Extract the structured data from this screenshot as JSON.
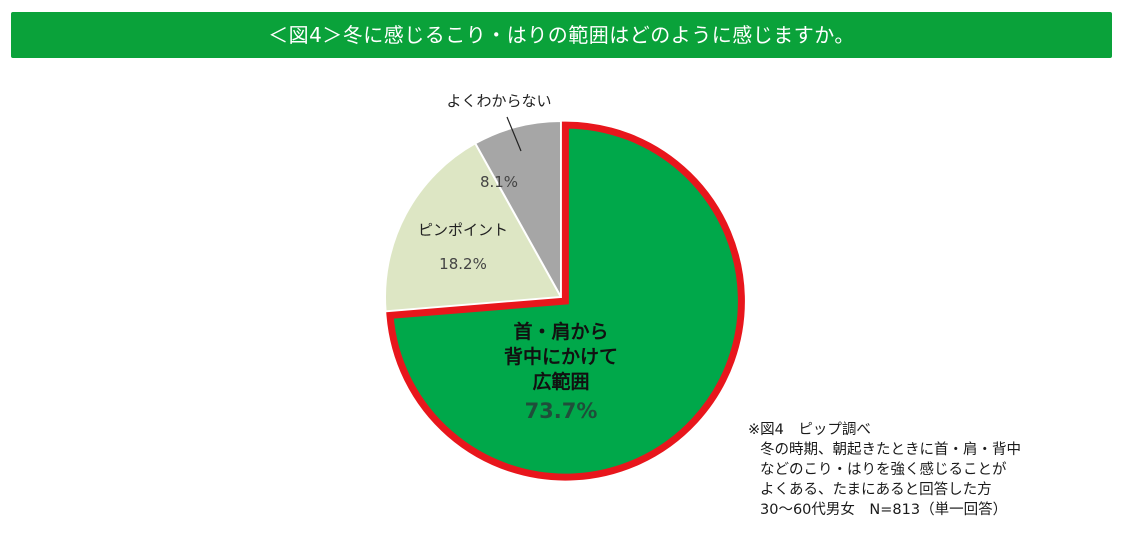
{
  "title": "＜図4＞冬に感じるこり・はりの範囲はどのように感じますか。",
  "chart_data": {
    "type": "pie",
    "slices": [
      {
        "label_lines": [
          "首・肩から",
          "背中にかけて",
          "広範囲"
        ],
        "value": 73.7,
        "value_label": "73.7%",
        "color": "#00a84a",
        "highlight": true
      },
      {
        "label_lines": [
          "ピンポイント"
        ],
        "value": 18.2,
        "value_label": "18.2%",
        "color": "#dde6c4",
        "highlight": false
      },
      {
        "label_lines": [
          "よくわからない"
        ],
        "value": 8.1,
        "value_label": "8.1%",
        "color": "#a6a6a6",
        "highlight": false
      }
    ],
    "highlight_color": "#e8161c"
  },
  "note": {
    "line1": "※図4　ピップ調べ",
    "line2": "冬の時期、朝起きたときに首・肩・背中",
    "line3": "などのこり・はりを強く感じることが",
    "line4": "よくある、たまにあると回答した方",
    "line5": "30〜60代男女　N=813（単一回答）"
  }
}
